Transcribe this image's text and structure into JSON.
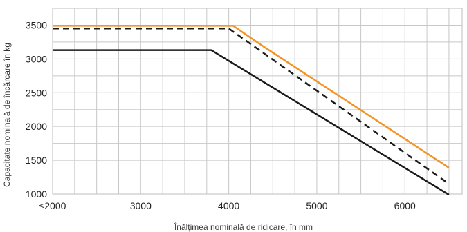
{
  "chart_data": {
    "type": "line",
    "title": "",
    "xlabel": "Înălțimea nominală de ridicare, în mm",
    "ylabel": "Capacitate nominală de încărcare în kg",
    "xlim": [
      2000,
      6650
    ],
    "ylim": [
      1000,
      3750
    ],
    "grid": true,
    "x_ticks": [
      {
        "value": 2000,
        "label": "≤2000"
      },
      {
        "value": 3000,
        "label": "3000"
      },
      {
        "value": 4000,
        "label": "4000"
      },
      {
        "value": 5000,
        "label": "5000"
      },
      {
        "value": 6000,
        "label": "6000"
      }
    ],
    "y_ticks": [
      {
        "value": 1000,
        "label": "1000"
      },
      {
        "value": 1500,
        "label": "1500"
      },
      {
        "value": 2000,
        "label": "2000"
      },
      {
        "value": 2500,
        "label": "2500"
      },
      {
        "value": 3000,
        "label": "3000"
      },
      {
        "value": 3500,
        "label": "3500"
      }
    ],
    "series": [
      {
        "color": "#f39325",
        "dash": "solid",
        "points": [
          [
            2000,
            3490
          ],
          [
            4050,
            3490
          ],
          [
            4400,
            3180
          ],
          [
            6500,
            1390
          ]
        ]
      },
      {
        "color": "#1a1a1a",
        "dash": "dashed",
        "points": [
          [
            2000,
            3450
          ],
          [
            4000,
            3450
          ],
          [
            6500,
            1150
          ]
        ]
      },
      {
        "color": "#1a1a1a",
        "dash": "solid",
        "points": [
          [
            2000,
            3130
          ],
          [
            3800,
            3130
          ],
          [
            6500,
            990
          ]
        ]
      }
    ]
  }
}
